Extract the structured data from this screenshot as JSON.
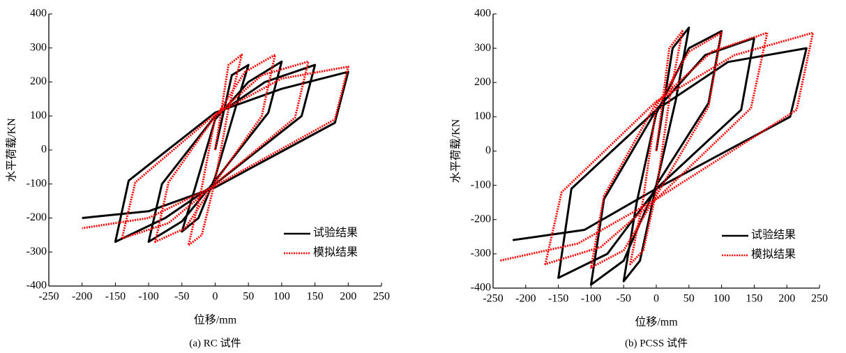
{
  "chart_data": [
    {
      "type": "line",
      "title": "(a) RC 试件",
      "x_label": "位移/mm",
      "y_label": "水平荷载/KN",
      "xlim": [
        -250,
        250
      ],
      "ylim": [
        -400,
        400
      ],
      "xticks": [
        -250,
        -200,
        -150,
        -100,
        -50,
        0,
        50,
        100,
        150,
        200,
        250
      ],
      "yticks": [
        -400,
        -300,
        -200,
        -100,
        0,
        100,
        200,
        300,
        400
      ],
      "legend": "lower right",
      "series": [
        {
          "name": "试验结果",
          "color": "#000000",
          "style": "solid",
          "x": [
            0,
            25,
            50,
            30,
            0,
            -25,
            -50,
            -30,
            0,
            50,
            100,
            80,
            0,
            -50,
            -100,
            -80,
            0,
            75,
            150,
            130,
            0,
            -75,
            -150,
            -130,
            0,
            100,
            200,
            180,
            0,
            -100,
            -200
          ],
          "values": [
            0,
            220,
            250,
            120,
            -80,
            -200,
            -240,
            -110,
            90,
            200,
            260,
            110,
            -90,
            -210,
            -270,
            -100,
            100,
            200,
            250,
            100,
            -100,
            -200,
            -270,
            -90,
            110,
            180,
            230,
            80,
            -110,
            -180,
            -200
          ]
        },
        {
          "name": "模拟结果",
          "color": "#ff0000",
          "style": "dotted",
          "x": [
            0,
            20,
            40,
            20,
            0,
            -20,
            -40,
            -20,
            0,
            45,
            90,
            70,
            0,
            -45,
            -90,
            -70,
            0,
            70,
            140,
            120,
            0,
            -70,
            -140,
            -120,
            0,
            100,
            200,
            180,
            0,
            -100,
            -200
          ],
          "values": [
            0,
            250,
            280,
            120,
            -90,
            -250,
            -280,
            -110,
            95,
            230,
            280,
            100,
            -95,
            -230,
            -270,
            -95,
            100,
            220,
            260,
            95,
            -100,
            -215,
            -260,
            -95,
            105,
            210,
            245,
            90,
            -105,
            -200,
            -230
          ]
        }
      ]
    },
    {
      "type": "line",
      "title": "(b) PCSS 试件",
      "x_label": "位移/mm",
      "y_label": "水平荷载/KN",
      "xlim": [
        -250,
        250
      ],
      "ylim": [
        -400,
        400
      ],
      "xticks": [
        -250,
        -200,
        -150,
        -100,
        -50,
        0,
        50,
        100,
        150,
        200,
        250
      ],
      "yticks": [
        -400,
        -300,
        -200,
        -100,
        0,
        100,
        200,
        300,
        400
      ],
      "legend": "lower right",
      "series": [
        {
          "name": "试验结果",
          "color": "#000000",
          "style": "solid",
          "x": [
            0,
            25,
            50,
            30,
            0,
            -25,
            -50,
            -30,
            0,
            50,
            100,
            80,
            0,
            -50,
            -100,
            -80,
            0,
            75,
            150,
            130,
            0,
            -75,
            -150,
            -130,
            0,
            110,
            230,
            205,
            0,
            -110,
            -220
          ],
          "values": [
            0,
            300,
            360,
            150,
            -100,
            -320,
            -380,
            -150,
            110,
            300,
            350,
            140,
            -100,
            -320,
            -390,
            -140,
            120,
            280,
            330,
            120,
            -110,
            -300,
            -370,
            -110,
            120,
            260,
            300,
            100,
            -110,
            -230,
            -260
          ]
        },
        {
          "name": "模拟结果",
          "color": "#ff0000",
          "style": "dotted",
          "x": [
            0,
            20,
            40,
            20,
            0,
            -20,
            -40,
            -20,
            0,
            50,
            100,
            80,
            0,
            -50,
            -100,
            -80,
            0,
            85,
            170,
            145,
            0,
            -85,
            -170,
            -145,
            0,
            120,
            240,
            215,
            0,
            -120,
            -240
          ],
          "values": [
            0,
            300,
            350,
            150,
            -120,
            -290,
            -330,
            -140,
            130,
            290,
            345,
            130,
            -130,
            -290,
            -340,
            -130,
            140,
            290,
            345,
            125,
            -140,
            -280,
            -330,
            -120,
            145,
            280,
            345,
            120,
            -140,
            -270,
            -320
          ]
        }
      ]
    }
  ]
}
